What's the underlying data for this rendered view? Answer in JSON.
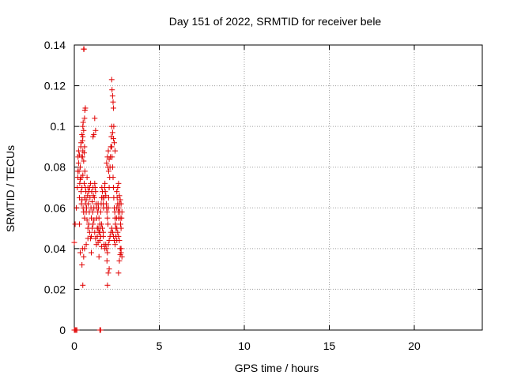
{
  "chart_data": {
    "type": "scatter",
    "title": "Day 151 of 2022, SRMTID for receiver bele",
    "xlabel": "GPS time / hours",
    "ylabel": "SRMTID / TECUs",
    "xlim": [
      0,
      24
    ],
    "ylim": [
      0,
      0.14
    ],
    "xticks": [
      0,
      5,
      10,
      15,
      20
    ],
    "yticks": [
      0,
      0.02,
      0.04,
      0.06,
      0.08,
      0.1,
      0.12,
      0.14
    ],
    "xtick_labels": [
      "0",
      "5",
      "10",
      "15",
      "20"
    ],
    "ytick_labels": [
      "0",
      "0.02",
      "0.04",
      "0.06",
      "0.08",
      "0.1",
      "0.12",
      "0.14"
    ],
    "grid": true,
    "marker": "+",
    "color": "#e00000",
    "series": [
      {
        "x": [
          0.0,
          0.05,
          0.1,
          0.15,
          1.5,
          1.55,
          0.0,
          0.05,
          0.12,
          0.18,
          0.2,
          0.22,
          0.25,
          0.28,
          0.3,
          0.32,
          0.35,
          0.38,
          0.4,
          0.42,
          0.45,
          0.48,
          0.5,
          0.52,
          0.55,
          0.58,
          0.6,
          0.62,
          0.65,
          0.68,
          0.7,
          0.72,
          0.75,
          0.78,
          0.8,
          0.82,
          0.85,
          0.88,
          0.9,
          0.92,
          0.95,
          0.98,
          1.0,
          1.02,
          1.05,
          1.08,
          1.1,
          1.12,
          1.15,
          1.18,
          1.2,
          1.22,
          1.25,
          1.28,
          1.3,
          1.32,
          1.35,
          1.38,
          1.4,
          1.42,
          1.45,
          1.48,
          1.5,
          1.52,
          1.55,
          1.58,
          1.6,
          1.62,
          1.65,
          1.68,
          1.7,
          1.72,
          1.75,
          1.78,
          1.8,
          1.82,
          1.85,
          1.88,
          1.9,
          1.92,
          1.95,
          1.98,
          2.0,
          2.02,
          2.05,
          2.08,
          2.1,
          2.12,
          2.15,
          2.18,
          2.2,
          2.22,
          2.25,
          2.28,
          2.3,
          2.32,
          2.35,
          2.38,
          2.4,
          2.42,
          2.45,
          2.48,
          2.5,
          2.52,
          2.55,
          2.58,
          2.6,
          2.62,
          2.65,
          2.68,
          2.7,
          2.72,
          2.75,
          2.78,
          2.8,
          0.2,
          0.25,
          0.3,
          0.35,
          0.4,
          0.45,
          0.5,
          0.55,
          0.6,
          0.65,
          0.7,
          0.75,
          0.8,
          0.85,
          0.9,
          0.95,
          1.0,
          1.05,
          1.1,
          1.15,
          1.2,
          1.25,
          1.3,
          1.35,
          1.4,
          1.45,
          1.5,
          1.55,
          1.6,
          1.65,
          1.7,
          1.75,
          1.8,
          1.85,
          1.9,
          1.95,
          2.0,
          2.05,
          2.1,
          2.15,
          2.2,
          2.25,
          2.3,
          2.35,
          2.4,
          2.45,
          2.5,
          2.55,
          2.6,
          2.65,
          2.7,
          2.75,
          2.8,
          0.4,
          0.45,
          0.5,
          0.52,
          0.55,
          0.6,
          0.62,
          0.65,
          0.45,
          0.5,
          0.55,
          0.6,
          0.48,
          0.58,
          1.2,
          1.25,
          1.1,
          1.15,
          2.2,
          2.22,
          2.25,
          2.28,
          2.3,
          2.32,
          2.2,
          2.25,
          2.3,
          2.35,
          2.15,
          2.4,
          2.0,
          1.95,
          1.9,
          2.05,
          1.98,
          2.02,
          2.6,
          2.55,
          2.5,
          2.65,
          2.7,
          2.75,
          0.45,
          0.5,
          0.55,
          0.48,
          1.95,
          2.0,
          2.05,
          1.92,
          0.3,
          0.35,
          0.6,
          1.4,
          1.45,
          2.6,
          2.65,
          2.7,
          2.75,
          0.7,
          0.8,
          1.0,
          1.6,
          1.7,
          2.5
        ],
        "y": [
          0.0,
          0.0,
          0.0,
          0.0,
          0.0,
          0.0,
          0.043,
          0.052,
          0.06,
          0.07,
          0.075,
          0.085,
          0.088,
          0.078,
          0.065,
          0.072,
          0.08,
          0.09,
          0.075,
          0.062,
          0.07,
          0.085,
          0.095,
          0.06,
          0.058,
          0.072,
          0.065,
          0.078,
          0.07,
          0.068,
          0.064,
          0.06,
          0.075,
          0.066,
          0.07,
          0.062,
          0.068,
          0.058,
          0.07,
          0.065,
          0.072,
          0.06,
          0.055,
          0.068,
          0.063,
          0.058,
          0.07,
          0.066,
          0.06,
          0.065,
          0.072,
          0.07,
          0.068,
          0.062,
          0.06,
          0.055,
          0.05,
          0.058,
          0.062,
          0.06,
          0.055,
          0.048,
          0.052,
          0.05,
          0.058,
          0.062,
          0.065,
          0.07,
          0.068,
          0.065,
          0.062,
          0.06,
          0.065,
          0.07,
          0.072,
          0.068,
          0.066,
          0.062,
          0.06,
          0.058,
          0.055,
          0.052,
          0.06,
          0.065,
          0.07,
          0.075,
          0.08,
          0.085,
          0.09,
          0.095,
          0.09,
          0.085,
          0.08,
          0.075,
          0.07,
          0.065,
          0.06,
          0.058,
          0.055,
          0.052,
          0.05,
          0.055,
          0.06,
          0.065,
          0.062,
          0.058,
          0.055,
          0.06,
          0.062,
          0.058,
          0.055,
          0.052,
          0.05,
          0.055,
          0.058,
          0.078,
          0.082,
          0.086,
          0.074,
          0.068,
          0.064,
          0.076,
          0.058,
          0.055,
          0.062,
          0.058,
          0.054,
          0.05,
          0.052,
          0.048,
          0.045,
          0.046,
          0.05,
          0.052,
          0.054,
          0.048,
          0.045,
          0.042,
          0.046,
          0.05,
          0.048,
          0.044,
          0.046,
          0.052,
          0.05,
          0.046,
          0.042,
          0.04,
          0.042,
          0.04,
          0.038,
          0.042,
          0.044,
          0.046,
          0.048,
          0.05,
          0.048,
          0.046,
          0.044,
          0.042,
          0.046,
          0.05,
          0.048,
          0.046,
          0.044,
          0.04,
          0.038,
          0.036,
          0.092,
          0.096,
          0.1,
          0.102,
          0.098,
          0.104,
          0.108,
          0.109,
          0.085,
          0.088,
          0.083,
          0.09,
          0.093,
          0.087,
          0.104,
          0.098,
          0.095,
          0.096,
          0.123,
          0.118,
          0.115,
          0.112,
          0.109,
          0.1,
          0.1,
          0.097,
          0.094,
          0.092,
          0.09,
          0.088,
          0.088,
          0.085,
          0.082,
          0.084,
          0.08,
          0.078,
          0.072,
          0.07,
          0.068,
          0.066,
          0.064,
          0.062,
          0.032,
          0.022,
          0.036,
          0.04,
          0.022,
          0.028,
          0.03,
          0.034,
          0.052,
          0.038,
          0.04,
          0.043,
          0.036,
          0.028,
          0.034,
          0.037,
          0.04,
          0.042,
          0.045,
          0.038,
          0.041,
          0.048,
          0.044
        ]
      },
      {
        "x": [
          0.55,
          0.57
        ],
        "y": [
          0.138,
          0.138
        ]
      }
    ]
  }
}
